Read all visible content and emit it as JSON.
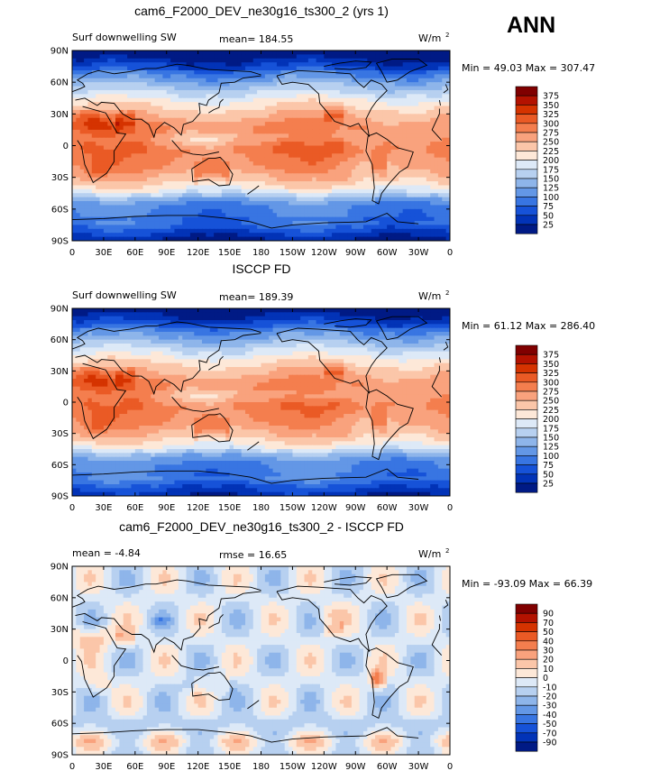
{
  "season": "ANN",
  "chart_data": [
    {
      "type": "heatmap",
      "title": "cam6_F2000_DEV_ne30g16_ts300_2 (yrs 1)",
      "left_label": "Surf downwelling SW",
      "center_label": "mean= 184.55",
      "units_base": "W/m",
      "units_exp": "2",
      "minmax": "Min =  49.03 Max = 307.47",
      "x_ticks": [
        "0",
        "30E",
        "60E",
        "90E",
        "120E",
        "150E",
        "180",
        "150W",
        "120W",
        "90W",
        "60W",
        "30W",
        "0"
      ],
      "y_ticks": [
        "90N",
        "60N",
        "30N",
        "0",
        "30S",
        "60S",
        "90S"
      ],
      "colorbar_labels": [
        "375",
        "350",
        "325",
        "300",
        "275",
        "250",
        "225",
        "200",
        "175",
        "150",
        "125",
        "100",
        "75",
        "50",
        "25"
      ],
      "scale": "absolute",
      "field": "model"
    },
    {
      "type": "heatmap",
      "title": "ISCCP FD",
      "left_label": "Surf downwelling SW",
      "center_label": "mean= 189.39",
      "units_base": "W/m",
      "units_exp": "2",
      "minmax": "Min =  61.12 Max = 286.40",
      "x_ticks": [
        "0",
        "30E",
        "60E",
        "90E",
        "120E",
        "150E",
        "180",
        "150W",
        "120W",
        "90W",
        "60W",
        "30W",
        "0"
      ],
      "y_ticks": [
        "90N",
        "60N",
        "30N",
        "0",
        "30S",
        "60S",
        "90S"
      ],
      "colorbar_labels": [
        "375",
        "350",
        "325",
        "300",
        "275",
        "250",
        "225",
        "200",
        "175",
        "150",
        "125",
        "100",
        "75",
        "50",
        "25"
      ],
      "scale": "absolute",
      "field": "obs"
    },
    {
      "type": "heatmap",
      "title": "cam6_F2000_DEV_ne30g16_ts300_2 - ISCCP FD",
      "left_label": "mean =  -4.84",
      "center_label": "rmse =  16.65",
      "units_base": "W/m",
      "units_exp": "2",
      "minmax": "Min = -93.09 Max =  66.39",
      "x_ticks": [
        "0",
        "30E",
        "60E",
        "90E",
        "120E",
        "150E",
        "180",
        "150W",
        "120W",
        "90W",
        "60W",
        "30W",
        "0"
      ],
      "y_ticks": [
        "90N",
        "60N",
        "30N",
        "0",
        "30S",
        "60S",
        "90S"
      ],
      "colorbar_labels": [
        "90",
        "70",
        "50",
        "40",
        "30",
        "20",
        "10",
        "0",
        "-10",
        "-20",
        "-30",
        "-40",
        "-50",
        "-70",
        "-90"
      ],
      "scale": "difference",
      "field": "diff"
    }
  ],
  "palette": [
    "#800000",
    "#b31200",
    "#d53300",
    "#ea5a25",
    "#f47e4e",
    "#f9a27d",
    "#fbc6a9",
    "#fde8d8",
    "#dde9f7",
    "#b7d0f0",
    "#8eb5ea",
    "#6397e6",
    "#3875e2",
    "#1652d8",
    "#0233b7",
    "#001a85"
  ]
}
